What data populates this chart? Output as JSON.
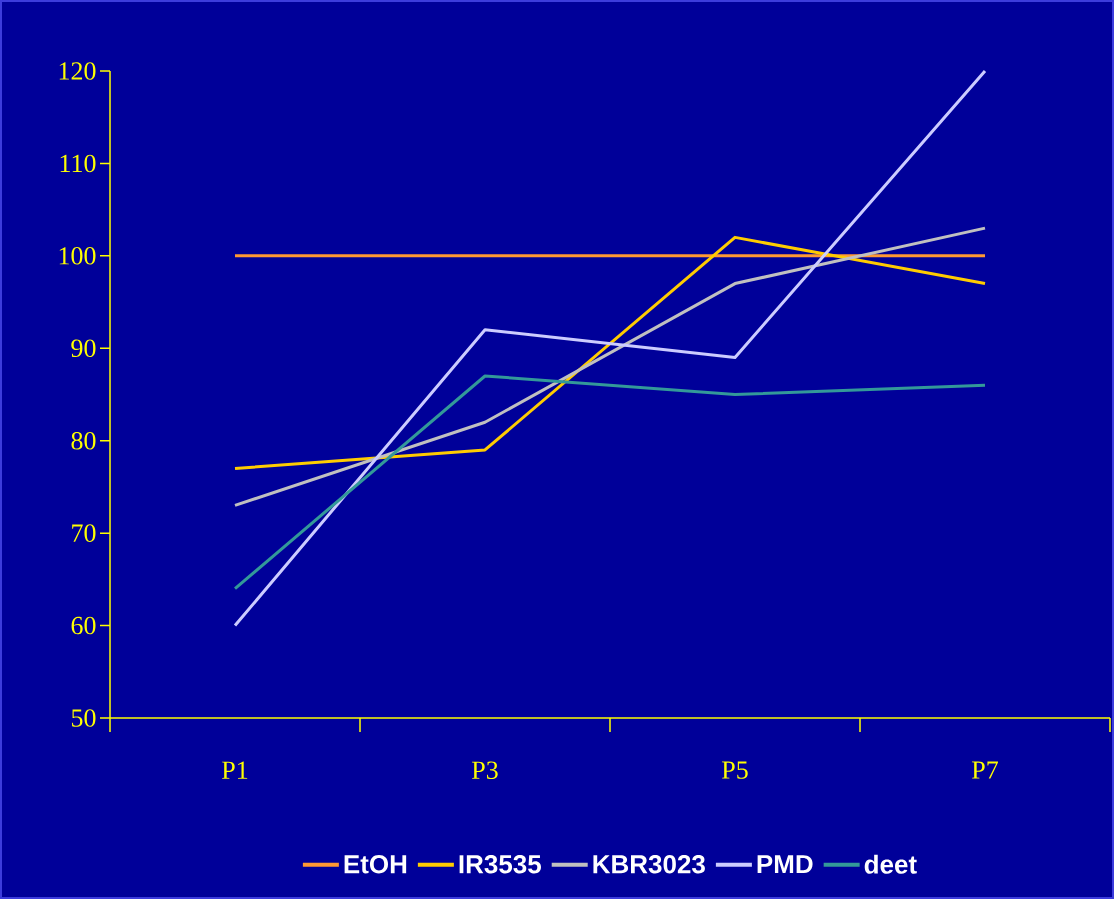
{
  "chart_data": {
    "type": "line",
    "categories": [
      "P1",
      "P3",
      "P5",
      "P7"
    ],
    "ylim": [
      50,
      120
    ],
    "yticks": [
      50,
      60,
      70,
      80,
      90,
      100,
      110,
      120
    ],
    "legend": "bottom",
    "grid": false,
    "marker": "none",
    "series": [
      {
        "name": "EtOH",
        "color": "#ff9933",
        "values": [
          100,
          100,
          100,
          100
        ]
      },
      {
        "name": "IR3535",
        "color": "#ffcc00",
        "values": [
          77,
          79,
          102,
          97
        ]
      },
      {
        "name": "KBR3023",
        "color": "#c0c0c0",
        "values": [
          73,
          82,
          97,
          103
        ]
      },
      {
        "name": "PMD",
        "color": "#ccccff",
        "values": [
          60,
          92,
          89,
          120
        ]
      },
      {
        "name": "deet",
        "color": "#339999",
        "values": [
          64,
          87,
          85,
          86
        ]
      }
    ]
  }
}
